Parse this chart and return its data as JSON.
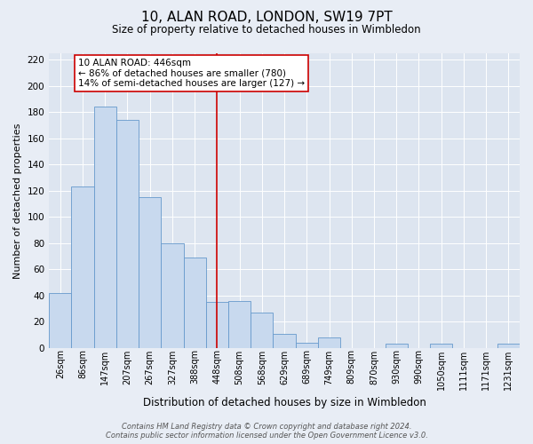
{
  "title": "10, ALAN ROAD, LONDON, SW19 7PT",
  "subtitle": "Size of property relative to detached houses in Wimbledon",
  "xlabel": "Distribution of detached houses by size in Wimbledon",
  "ylabel": "Number of detached properties",
  "categories": [
    "26sqm",
    "86sqm",
    "147sqm",
    "207sqm",
    "267sqm",
    "327sqm",
    "388sqm",
    "448sqm",
    "508sqm",
    "568sqm",
    "629sqm",
    "689sqm",
    "749sqm",
    "809sqm",
    "870sqm",
    "930sqm",
    "990sqm",
    "1050sqm",
    "1111sqm",
    "1171sqm",
    "1231sqm"
  ],
  "values": [
    42,
    123,
    184,
    174,
    115,
    80,
    69,
    35,
    36,
    27,
    11,
    4,
    8,
    0,
    0,
    3,
    0,
    3,
    0,
    0,
    3
  ],
  "bar_color": "#c8d9ee",
  "bar_edge_color": "#6699cc",
  "vline_x_index": 7,
  "vline_color": "#cc0000",
  "annotation_title": "10 ALAN ROAD: 446sqm",
  "annotation_line1": "← 86% of detached houses are smaller (780)",
  "annotation_line2": "14% of semi-detached houses are larger (127) →",
  "annotation_box_color": "#ffffff",
  "annotation_box_edge": "#cc0000",
  "ylim": [
    0,
    225
  ],
  "yticks": [
    0,
    20,
    40,
    60,
    80,
    100,
    120,
    140,
    160,
    180,
    200,
    220
  ],
  "footer_line1": "Contains HM Land Registry data © Crown copyright and database right 2024.",
  "footer_line2": "Contains public sector information licensed under the Open Government Licence v3.0.",
  "background_color": "#e8edf5",
  "plot_bg_color": "#dde5f0",
  "grid_color": "#ffffff",
  "title_fontsize": 11,
  "subtitle_fontsize": 8.5,
  "ylabel_fontsize": 8,
  "xlabel_fontsize": 8.5,
  "ytick_fontsize": 7.5,
  "xtick_fontsize": 7,
  "annotation_fontsize": 7.5,
  "footer_fontsize": 6
}
